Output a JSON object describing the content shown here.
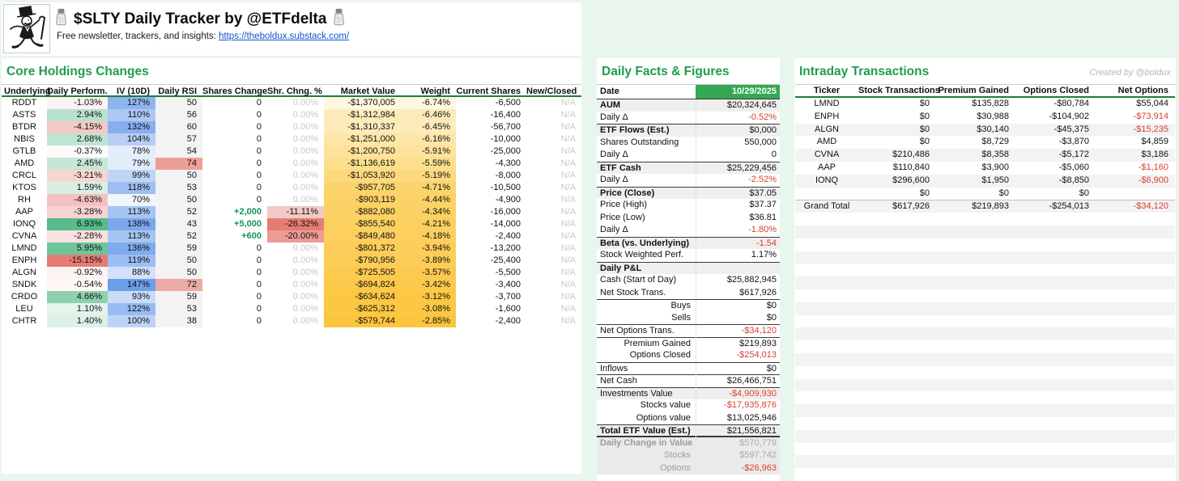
{
  "page": {
    "created_by": "Created by @boldux"
  },
  "header": {
    "title": "$SLTY Daily Tracker by @ETFdelta",
    "subtitle_prefix": "Free newsletter, trackers, and insights: ",
    "subtitle_link": "https://theboldux.substack.com/",
    "logo": "monopoly-man-drawing",
    "title_icons": "salt-shaker"
  },
  "colors": {
    "accent_green": "#1f9d4d",
    "date_cell_green": "#34a853",
    "negative_red": "#d8402f",
    "positive_green_text": "#12945a",
    "perf_green_max": "#57bb8a",
    "perf_red_max": "#e67c73",
    "iv_blue_max": "#6d9eeb",
    "market_value_orange": "#fcc53d"
  },
  "core": {
    "title": "Core Holdings Changes",
    "columns": [
      "Underlying",
      "Daily Perform.",
      "IV (10D)",
      "Daily RSI",
      "Shares Change",
      "Shr. Chng. %",
      "Market Value",
      "Weight",
      "Current Shares",
      "New/Closed"
    ],
    "rows": [
      {
        "t": "RDDT",
        "perf": -1.03,
        "iv": 127,
        "rsi": 50,
        "chg": 0,
        "chgPct": 0,
        "mv": -1370005,
        "w": -6.74,
        "cs": -6500,
        "nc": "N/A"
      },
      {
        "t": "ASTS",
        "perf": 2.94,
        "iv": 110,
        "rsi": 56,
        "chg": 0,
        "chgPct": 0,
        "mv": -1312984,
        "w": -6.46,
        "cs": -16400,
        "nc": "N/A"
      },
      {
        "t": "BTDR",
        "perf": -4.15,
        "iv": 132,
        "rsi": 60,
        "chg": 0,
        "chgPct": 0,
        "mv": -1310337,
        "w": -6.45,
        "cs": -56700,
        "nc": "N/A"
      },
      {
        "t": "NBIS",
        "perf": 2.68,
        "iv": 104,
        "rsi": 57,
        "chg": 0,
        "chgPct": 0,
        "mv": -1251000,
        "w": -6.16,
        "cs": -10000,
        "nc": "N/A"
      },
      {
        "t": "GTLB",
        "perf": -0.37,
        "iv": 78,
        "rsi": 54,
        "chg": 0,
        "chgPct": 0,
        "mv": -1200750,
        "w": -5.91,
        "cs": -25000,
        "nc": "N/A"
      },
      {
        "t": "AMD",
        "perf": 2.45,
        "iv": 79,
        "rsi": 74,
        "chg": 0,
        "chgPct": 0,
        "mv": -1136619,
        "w": -5.59,
        "cs": -4300,
        "nc": "N/A"
      },
      {
        "t": "CRCL",
        "perf": -3.21,
        "iv": 99,
        "rsi": 50,
        "chg": 0,
        "chgPct": 0,
        "mv": -1053920,
        "w": -5.19,
        "cs": -8000,
        "nc": "N/A"
      },
      {
        "t": "KTOS",
        "perf": 1.59,
        "iv": 118,
        "rsi": 53,
        "chg": 0,
        "chgPct": 0,
        "mv": -957705,
        "w": -4.71,
        "cs": -10500,
        "nc": "N/A"
      },
      {
        "t": "RH",
        "perf": -4.63,
        "iv": 70,
        "rsi": 50,
        "chg": 0,
        "chgPct": 0,
        "mv": -903119,
        "w": -4.44,
        "cs": -4900,
        "nc": "N/A"
      },
      {
        "t": "AAP",
        "perf": -3.28,
        "iv": 113,
        "rsi": 52,
        "chg": 2000,
        "chgPct": -11.11,
        "mv": -882080,
        "w": -4.34,
        "cs": -16000,
        "nc": "N/A"
      },
      {
        "t": "IONQ",
        "perf": 6.93,
        "iv": 138,
        "rsi": 43,
        "chg": 5000,
        "chgPct": -26.32,
        "mv": -855540,
        "w": -4.21,
        "cs": -14000,
        "nc": "N/A"
      },
      {
        "t": "CVNA",
        "perf": -2.28,
        "iv": 113,
        "rsi": 52,
        "chg": 600,
        "chgPct": -20.0,
        "mv": -849480,
        "w": -4.18,
        "cs": -2400,
        "nc": "N/A"
      },
      {
        "t": "LMND",
        "perf": 5.95,
        "iv": 136,
        "rsi": 59,
        "chg": 0,
        "chgPct": 0,
        "mv": -801372,
        "w": -3.94,
        "cs": -13200,
        "nc": "N/A"
      },
      {
        "t": "ENPH",
        "perf": -15.15,
        "iv": 119,
        "rsi": 50,
        "chg": 0,
        "chgPct": 0,
        "mv": -790956,
        "w": -3.89,
        "cs": -25400,
        "nc": "N/A"
      },
      {
        "t": "ALGN",
        "perf": -0.92,
        "iv": 88,
        "rsi": 50,
        "chg": 0,
        "chgPct": 0,
        "mv": -725505,
        "w": -3.57,
        "cs": -5500,
        "nc": "N/A"
      },
      {
        "t": "SNDK",
        "perf": -0.54,
        "iv": 147,
        "rsi": 72,
        "chg": 0,
        "chgPct": 0,
        "mv": -694824,
        "w": -3.42,
        "cs": -3400,
        "nc": "N/A"
      },
      {
        "t": "CRDO",
        "perf": 4.66,
        "iv": 93,
        "rsi": 59,
        "chg": 0,
        "chgPct": 0,
        "mv": -634624,
        "w": -3.12,
        "cs": -3700,
        "nc": "N/A"
      },
      {
        "t": "LEU",
        "perf": 1.1,
        "iv": 122,
        "rsi": 53,
        "chg": 0,
        "chgPct": 0,
        "mv": -625312,
        "w": -3.08,
        "cs": -1600,
        "nc": "N/A"
      },
      {
        "t": "CHTR",
        "perf": 1.4,
        "iv": 100,
        "rsi": 38,
        "chg": 0,
        "chgPct": 0,
        "mv": -579744,
        "w": -2.85,
        "cs": -2400,
        "nc": "N/A"
      }
    ]
  },
  "facts": {
    "title": "Daily Facts & Figures",
    "date_label": "Date",
    "date_value": "10/29/2025",
    "rows": [
      {
        "l": "AUM",
        "v": "$20,324,645",
        "c": "b g bt"
      },
      {
        "l": "Daily Δ",
        "v": "-0.52%",
        "c": "vr"
      },
      {
        "l": "ETF Flows (Est.)",
        "v": "$0,000",
        "c": "b g bt"
      },
      {
        "l": "Shares Outstanding",
        "v": "550,000",
        "c": ""
      },
      {
        "l": "Daily Δ",
        "v": "0",
        "c": ""
      },
      {
        "l": "ETF Cash",
        "v": "$25,229,456",
        "c": "b g bt"
      },
      {
        "l": "Daily Δ",
        "v": "-2.52%",
        "c": "vr"
      },
      {
        "l": "Price (Close)",
        "v": "$37.05",
        "c": "b g bt"
      },
      {
        "l": "Price (High)",
        "v": "$37.37",
        "c": ""
      },
      {
        "l": "Price (Low)",
        "v": "$36.81",
        "c": ""
      },
      {
        "l": "Daily Δ",
        "v": "-1.80%",
        "c": "vr"
      },
      {
        "l": "Beta (vs. Underlying)",
        "v": "-1.54",
        "c": "b g bt vr"
      },
      {
        "l": "Stock Weighted Perf.",
        "v": "1.17%",
        "c": ""
      },
      {
        "l": "Daily P&L",
        "v": "",
        "c": "b g bt"
      },
      {
        "l": "Cash (Start of Day)",
        "v": "$25,882,945",
        "c": ""
      },
      {
        "l": "Net Stock Trans.",
        "v": "$617,926",
        "c": ""
      },
      {
        "l": "Buys",
        "v": "$0",
        "c": "in bt"
      },
      {
        "l": "Sells",
        "v": "$0",
        "c": "in"
      },
      {
        "l": "Net Options Trans.",
        "v": "-$34,120",
        "c": "vr bt"
      },
      {
        "l": "Premium Gained",
        "v": "$219,893",
        "c": "in bt"
      },
      {
        "l": "Options Closed",
        "v": "-$254,013",
        "c": "in vr"
      },
      {
        "l": "Inflows",
        "v": "$0",
        "c": "bt"
      },
      {
        "l": "Net Cash",
        "v": "$26,466,751",
        "c": "bt"
      },
      {
        "l": "Investments Value",
        "v": "-$4,909,930",
        "c": "g bt vr"
      },
      {
        "l": "Stocks value",
        "v": "-$17,935,876",
        "c": "in vr"
      },
      {
        "l": "Options value",
        "v": "$13,025,946",
        "c": "in"
      },
      {
        "l": "Total ETF Value (Est.)",
        "v": "$21,556,821",
        "c": "b g bt bb"
      },
      {
        "l": "Daily Change in Value",
        "v": "$570,779",
        "c": "b sec lg vg"
      },
      {
        "l": "Stocks",
        "v": "$597,742",
        "c": "in sec lg vg"
      },
      {
        "l": "Options",
        "v": "-$26,963",
        "c": "in sec lg vr"
      }
    ]
  },
  "intraday": {
    "title": "Intraday Transactions",
    "columns": [
      "Ticker",
      "Stock Transactions",
      "Premium Gained",
      "Options Closed",
      "Net Options"
    ],
    "rows": [
      {
        "t": "LMND",
        "st": 0,
        "pg": 135828,
        "oc": -80784,
        "no": 55044,
        "shade": false
      },
      {
        "t": "ENPH",
        "st": 0,
        "pg": 30988,
        "oc": -104902,
        "no": -73914,
        "shade": false
      },
      {
        "t": "ALGN",
        "st": 0,
        "pg": 30140,
        "oc": -45375,
        "no": -15235,
        "shade": true
      },
      {
        "t": "AMD",
        "st": 0,
        "pg": 8729,
        "oc": -3870,
        "no": 4859,
        "shade": false
      },
      {
        "t": "CVNA",
        "st": 210486,
        "pg": 8358,
        "oc": -5172,
        "no": 3186,
        "shade": true
      },
      {
        "t": "AAP",
        "st": 110840,
        "pg": 3900,
        "oc": -5060,
        "no": -1160,
        "shade": false
      },
      {
        "t": "IONQ",
        "st": 296600,
        "pg": 1950,
        "oc": -8850,
        "no": -6900,
        "shade": true
      },
      {
        "t": "",
        "st": 0,
        "pg": 0,
        "oc": 0,
        "no": null,
        "shade": false
      }
    ],
    "grand_total": {
      "t": "Grand Total",
      "st": 617926,
      "pg": 219893,
      "oc": -254013,
      "no": -34120,
      "shade": true
    }
  }
}
